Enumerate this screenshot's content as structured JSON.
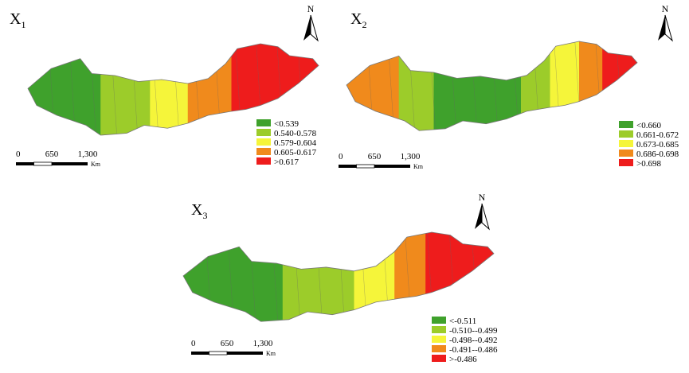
{
  "maps": [
    {
      "label": "X",
      "subscript": "1",
      "north": "N",
      "scale": {
        "ticks": [
          "0",
          "650",
          "1,300"
        ],
        "unit": "Km"
      },
      "legend": [
        {
          "label": "<0.539",
          "color": "#3fa12c"
        },
        {
          "label": "0.540-0.578",
          "color": "#9ccc2a"
        },
        {
          "label": "0.579-0.604",
          "color": "#f5f53a"
        },
        {
          "label": "0.605-0.617",
          "color": "#f08a1c"
        },
        {
          "label": ">0.617",
          "color": "#ee1c1c"
        }
      ]
    },
    {
      "label": "X",
      "subscript": "2",
      "north": "N",
      "scale": {
        "ticks": [
          "0",
          "650",
          "1,300"
        ],
        "unit": "Km"
      },
      "legend": [
        {
          "label": "<0.660",
          "color": "#3fa12c"
        },
        {
          "label": "0.661-0.672",
          "color": "#9ccc2a"
        },
        {
          "label": "0.673-0.685",
          "color": "#f5f53a"
        },
        {
          "label": "0.686-0.698",
          "color": "#f08a1c"
        },
        {
          "label": ">0.698",
          "color": "#ee1c1c"
        }
      ]
    },
    {
      "label": "X",
      "subscript": "3",
      "north": "N",
      "scale": {
        "ticks": [
          "0",
          "650",
          "1,300"
        ],
        "unit": "Km"
      },
      "legend": [
        {
          "label": "<-0.511",
          "color": "#3fa12c"
        },
        {
          "label": "-0.510--0.499",
          "color": "#9ccc2a"
        },
        {
          "label": "-0.498--0.492",
          "color": "#f5f53a"
        },
        {
          "label": "-0.491--0.486",
          "color": "#f08a1c"
        },
        {
          "label": ">-0.486",
          "color": "#ee1c1c"
        }
      ]
    }
  ]
}
